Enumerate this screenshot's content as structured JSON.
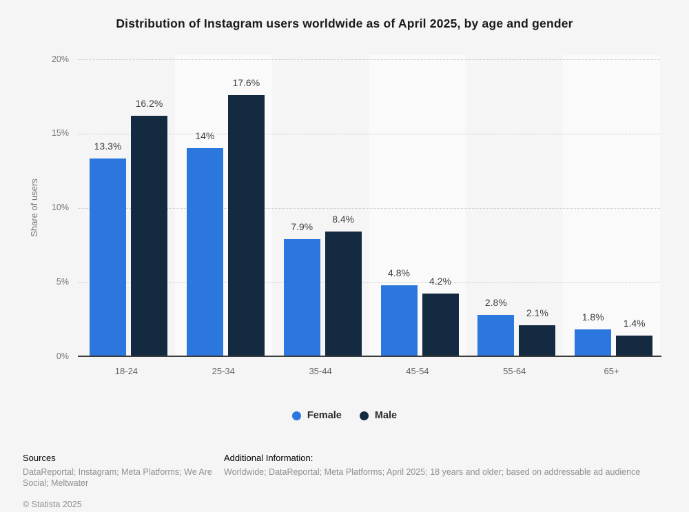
{
  "title": "Distribution of Instagram users worldwide as of April 2025, by age and gender",
  "chart_data": {
    "type": "bar",
    "categories": [
      "18-24",
      "25-34",
      "35-44",
      "45-54",
      "55-64",
      "65+"
    ],
    "series": [
      {
        "name": "Female",
        "color": "#2b77dd",
        "values": [
          13.3,
          14,
          7.9,
          4.8,
          2.8,
          1.8
        ],
        "labels": [
          "13.3%",
          "14%",
          "7.9%",
          "4.8%",
          "2.8%",
          "1.8%"
        ]
      },
      {
        "name": "Male",
        "color": "#142a40",
        "values": [
          16.2,
          17.6,
          8.4,
          4.2,
          2.1,
          1.4
        ],
        "labels": [
          "16.2%",
          "17.6%",
          "8.4%",
          "4.2%",
          "2.1%",
          "1.4%"
        ]
      }
    ],
    "xlabel": "",
    "ylabel": "Share of users",
    "ylim": [
      0,
      20
    ],
    "yticks": [
      {
        "value": 0,
        "label": "0%"
      },
      {
        "value": 5,
        "label": "5%"
      },
      {
        "value": 10,
        "label": "10%"
      },
      {
        "value": 15,
        "label": "15%"
      },
      {
        "value": 20,
        "label": "20%"
      }
    ],
    "grid": "horizontal-dotted",
    "legend_position": "bottom-center"
  },
  "colors": {
    "page_bg": "#f5f5f5",
    "band_alt": "#fafafa",
    "axis_line": "#3c3c3c",
    "gridline": "#c9c9c9"
  },
  "footer": {
    "sources_heading": "Sources",
    "sources_text": "DataReportal; Instagram; Meta Platforms; We Are Social; Meltwater",
    "copyright": "© Statista 2025",
    "additional_heading": "Additional Information:",
    "additional_text": "Worldwide; DataReportal; Meta Platforms; April 2025; 18 years and older; based on addressable ad audience"
  }
}
